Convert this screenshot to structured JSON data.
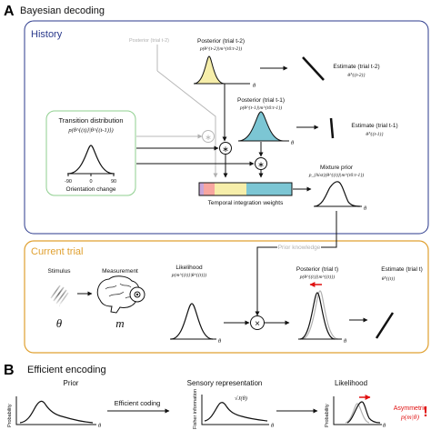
{
  "panel_a": {
    "letter": "A",
    "title": "Bayesian decoding",
    "history": {
      "title": "History",
      "posterior_t2_gray": "Posterior (trial t-2)",
      "posterior_t2": {
        "label": "Posterior (trial t-2)",
        "formula": "p(θ^{t-2}|m^{t0:t-2})",
        "axis": "θ"
      },
      "posterior_t1": {
        "label": "Posterior (trial t-1)",
        "formula": "p(θ^{t-1}|m^{t0:t-1})",
        "axis": "θ"
      },
      "estimate_t2": {
        "label": "Estimate (trial t-2)",
        "symbol": "θ̂^{(t-2)}"
      },
      "estimate_t1": {
        "label": "Estimate (trial t-1)",
        "symbol": "θ̂^{(t-1)}"
      },
      "transition": {
        "title": "Transition distribution",
        "formula": "p(θ^{(t)}|θ^{(t-1)})",
        "tick_left": "-90",
        "tick_mid": "0",
        "tick_right": "90",
        "xlabel": "Orientation change"
      },
      "mixture": {
        "label": "Mixture prior",
        "formula": "p_{hist}(θ^{(t)}|m^{t0:t-1})",
        "axis": "θ"
      },
      "weights_label": "Temporal integration weights",
      "weights_colors": [
        "#c9a6d8",
        "#f7a6a0",
        "#f6eeaa",
        "#7cc6d4"
      ],
      "star": "∗"
    },
    "current": {
      "title": "Current trial",
      "prior_knowledge": "Prior knowledge",
      "stimulus": {
        "label": "Stimulus",
        "symbol": "θ"
      },
      "measurement": {
        "label": "Measurement",
        "symbol": "m"
      },
      "likelihood": {
        "label": "Likelihood",
        "formula": "p(m^{(t)}|θ^{(t)})",
        "axis": "θ"
      },
      "times": "×",
      "posterior_t": {
        "label": "Posterior (trial t)",
        "formula": "p(θ^{(t)}|m^{(t)})",
        "axis": "θ"
      },
      "estimate_t": {
        "label": "Estimate (trial t)",
        "symbol": "θ̂^{(t)}"
      }
    },
    "colors": {
      "history_border": "#2b3a8c",
      "current_border": "#e0a030",
      "current_title": "#e0a030",
      "transition_border": "#8fcf8f",
      "posterior_t2_fill": "#f6eeaa",
      "posterior_t1_fill": "#7cc6d4",
      "arrow_red": "#e01010",
      "gray": "#b0b0b0"
    }
  },
  "panel_b": {
    "letter": "B",
    "title": "Efficient encoding",
    "prior": {
      "label": "Prior",
      "ylabel": "Probability",
      "axis": "θ"
    },
    "coding": "Efficient coding",
    "sensory": {
      "label": "Sensory representation",
      "ylabel": "Fisher information",
      "curve": "√J(θ)",
      "axis": "θ"
    },
    "likelihood": {
      "label": "Likelihood",
      "ylabel": "Probability",
      "axis": "θ"
    },
    "asymmetric": {
      "line1": "Asymmetric",
      "line2": "p(m|θ)",
      "mark": "!"
    }
  }
}
